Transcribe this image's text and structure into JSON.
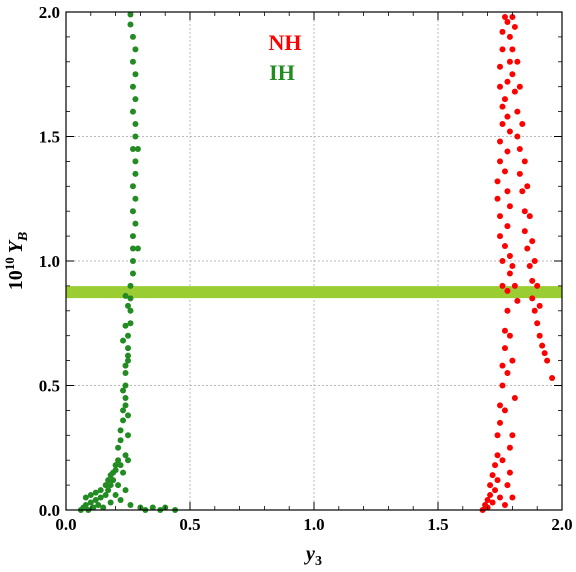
{
  "chart_data": {
    "type": "scatter",
    "title": "",
    "xlabel": "y",
    "xlabel_sub": "3",
    "ylabel_prefix": "10",
    "ylabel_exp": "10",
    "ylabel_var": "Y",
    "ylabel_sub": "B",
    "xlim": [
      0,
      2
    ],
    "ylim": [
      0,
      2
    ],
    "x_ticks": [
      "0.0",
      "0.5",
      "1.0",
      "1.5",
      "2.0"
    ],
    "y_ticks": [
      "0.0",
      "0.5",
      "1.0",
      "1.5",
      "2.0"
    ],
    "grid": true,
    "legend_placement": "top-center",
    "reference_band": {
      "y": 0.875,
      "color": "#9acd32"
    },
    "series": [
      {
        "name": "NH",
        "color": "#ff0000",
        "points": [
          [
            1.68,
            0.0
          ],
          [
            1.69,
            0.02
          ],
          [
            1.7,
            0.04
          ],
          [
            1.7,
            0.01
          ],
          [
            1.71,
            0.06
          ],
          [
            1.71,
            0.1
          ],
          [
            1.72,
            0.03
          ],
          [
            1.72,
            0.14
          ],
          [
            1.73,
            0.18
          ],
          [
            1.73,
            0.08
          ],
          [
            1.74,
            0.22
          ],
          [
            1.74,
            0.3
          ],
          [
            1.74,
            0.12
          ],
          [
            1.75,
            0.35
          ],
          [
            1.75,
            0.42
          ],
          [
            1.75,
            0.05
          ],
          [
            1.76,
            0.5
          ],
          [
            1.76,
            0.58
          ],
          [
            1.76,
            0.2
          ],
          [
            1.77,
            0.65
          ],
          [
            1.77,
            0.72
          ],
          [
            1.77,
            0.4
          ],
          [
            1.77,
            0.02
          ],
          [
            1.78,
            0.8
          ],
          [
            1.78,
            0.88
          ],
          [
            1.78,
            0.55
          ],
          [
            1.78,
            0.1
          ],
          [
            1.79,
            0.95
          ],
          [
            1.79,
            1.02
          ],
          [
            1.79,
            0.7
          ],
          [
            1.79,
            0.25
          ],
          [
            1.76,
            0.9
          ],
          [
            1.76,
            1.0
          ],
          [
            1.75,
            1.1
          ],
          [
            1.75,
            1.18
          ],
          [
            1.74,
            1.25
          ],
          [
            1.74,
            1.32
          ],
          [
            1.75,
            1.4
          ],
          [
            1.75,
            1.48
          ],
          [
            1.76,
            1.55
          ],
          [
            1.76,
            1.62
          ],
          [
            1.75,
            1.7
          ],
          [
            1.75,
            1.78
          ],
          [
            1.76,
            1.85
          ],
          [
            1.76,
            1.92
          ],
          [
            1.77,
            1.98
          ],
          [
            1.78,
            1.96
          ],
          [
            1.79,
            1.9
          ],
          [
            1.8,
            1.85
          ],
          [
            1.8,
            1.75
          ],
          [
            1.81,
            1.68
          ],
          [
            1.82,
            1.6
          ],
          [
            1.82,
            1.5
          ],
          [
            1.83,
            1.45
          ],
          [
            1.83,
            1.35
          ],
          [
            1.84,
            1.28
          ],
          [
            1.85,
            1.2
          ],
          [
            1.85,
            1.12
          ],
          [
            1.86,
            1.05
          ],
          [
            1.87,
            0.98
          ],
          [
            1.88,
            0.92
          ],
          [
            1.88,
            0.85
          ],
          [
            1.89,
            0.8
          ],
          [
            1.9,
            0.75
          ],
          [
            1.91,
            0.7
          ],
          [
            1.92,
            0.66
          ],
          [
            1.93,
            0.63
          ],
          [
            1.94,
            0.6
          ],
          [
            1.96,
            0.53
          ],
          [
            1.8,
            1.98
          ],
          [
            1.81,
            1.94
          ],
          [
            1.79,
            1.8
          ],
          [
            1.78,
            1.72
          ],
          [
            1.77,
            1.65
          ],
          [
            1.78,
            1.58
          ],
          [
            1.79,
            1.52
          ],
          [
            1.78,
            1.44
          ],
          [
            1.77,
            1.36
          ],
          [
            1.78,
            1.28
          ],
          [
            1.79,
            1.22
          ],
          [
            1.78,
            1.14
          ],
          [
            1.77,
            1.06
          ],
          [
            1.8,
            0.98
          ],
          [
            1.81,
            0.9
          ],
          [
            1.82,
            0.84
          ],
          [
            1.8,
            0.6
          ],
          [
            1.81,
            0.45
          ],
          [
            1.8,
            0.3
          ],
          [
            1.79,
            0.15
          ],
          [
            1.8,
            0.05
          ],
          [
            1.82,
            1.8
          ],
          [
            1.83,
            1.7
          ],
          [
            1.84,
            1.55
          ],
          [
            1.85,
            1.4
          ],
          [
            1.86,
            1.3
          ],
          [
            1.87,
            1.18
          ],
          [
            1.88,
            1.08
          ],
          [
            1.89,
            1.0
          ],
          [
            1.9,
            0.9
          ],
          [
            1.91,
            0.82
          ]
        ]
      },
      {
        "name": "IH",
        "color": "#228b22",
        "points": [
          [
            0.06,
            0.0
          ],
          [
            0.07,
            0.01
          ],
          [
            0.08,
            0.02
          ],
          [
            0.09,
            0.0
          ],
          [
            0.1,
            0.03
          ],
          [
            0.11,
            0.01
          ],
          [
            0.12,
            0.04
          ],
          [
            0.13,
            0.02
          ],
          [
            0.14,
            0.05
          ],
          [
            0.15,
            0.01
          ],
          [
            0.16,
            0.06
          ],
          [
            0.17,
            0.08
          ],
          [
            0.18,
            0.1
          ],
          [
            0.18,
            0.03
          ],
          [
            0.19,
            0.12
          ],
          [
            0.19,
            0.15
          ],
          [
            0.2,
            0.18
          ],
          [
            0.2,
            0.06
          ],
          [
            0.21,
            0.2
          ],
          [
            0.21,
            0.25
          ],
          [
            0.21,
            0.1
          ],
          [
            0.22,
            0.28
          ],
          [
            0.22,
            0.32
          ],
          [
            0.22,
            0.04
          ],
          [
            0.23,
            0.36
          ],
          [
            0.23,
            0.4
          ],
          [
            0.23,
            0.15
          ],
          [
            0.24,
            0.45
          ],
          [
            0.24,
            0.5
          ],
          [
            0.24,
            0.08
          ],
          [
            0.24,
            0.55
          ],
          [
            0.25,
            0.6
          ],
          [
            0.25,
            0.65
          ],
          [
            0.25,
            0.7
          ],
          [
            0.25,
            0.2
          ],
          [
            0.26,
            0.75
          ],
          [
            0.26,
            0.8
          ],
          [
            0.26,
            0.85
          ],
          [
            0.26,
            0.9
          ],
          [
            0.26,
            0.02
          ],
          [
            0.27,
            0.95
          ],
          [
            0.27,
            1.0
          ],
          [
            0.27,
            1.05
          ],
          [
            0.27,
            1.1
          ],
          [
            0.28,
            1.15
          ],
          [
            0.27,
            1.2
          ],
          [
            0.28,
            1.25
          ],
          [
            0.27,
            1.3
          ],
          [
            0.28,
            1.35
          ],
          [
            0.28,
            1.4
          ],
          [
            0.27,
            1.45
          ],
          [
            0.28,
            1.5
          ],
          [
            0.28,
            1.55
          ],
          [
            0.27,
            1.6
          ],
          [
            0.28,
            1.65
          ],
          [
            0.27,
            1.7
          ],
          [
            0.28,
            1.75
          ],
          [
            0.27,
            1.8
          ],
          [
            0.28,
            1.85
          ],
          [
            0.27,
            1.9
          ],
          [
            0.26,
            1.95
          ],
          [
            0.26,
            1.99
          ],
          [
            0.29,
            1.45
          ],
          [
            0.29,
            1.05
          ],
          [
            0.3,
            0.01
          ],
          [
            0.32,
            0.0
          ],
          [
            0.35,
            0.01
          ],
          [
            0.38,
            0.0
          ],
          [
            0.4,
            0.01
          ],
          [
            0.44,
            0.0
          ],
          [
            0.08,
            0.05
          ],
          [
            0.1,
            0.06
          ],
          [
            0.12,
            0.07
          ],
          [
            0.14,
            0.08
          ],
          [
            0.16,
            0.1
          ],
          [
            0.17,
            0.12
          ],
          [
            0.18,
            0.14
          ],
          [
            0.2,
            0.16
          ],
          [
            0.22,
            0.18
          ],
          [
            0.24,
            0.22
          ],
          [
            0.25,
            0.3
          ],
          [
            0.25,
            0.38
          ],
          [
            0.24,
            0.42
          ],
          [
            0.23,
            0.48
          ],
          [
            0.24,
            0.58
          ],
          [
            0.25,
            0.62
          ],
          [
            0.23,
            0.68
          ],
          [
            0.24,
            0.74
          ],
          [
            0.25,
            0.82
          ],
          [
            0.24,
            0.86
          ]
        ]
      }
    ]
  }
}
